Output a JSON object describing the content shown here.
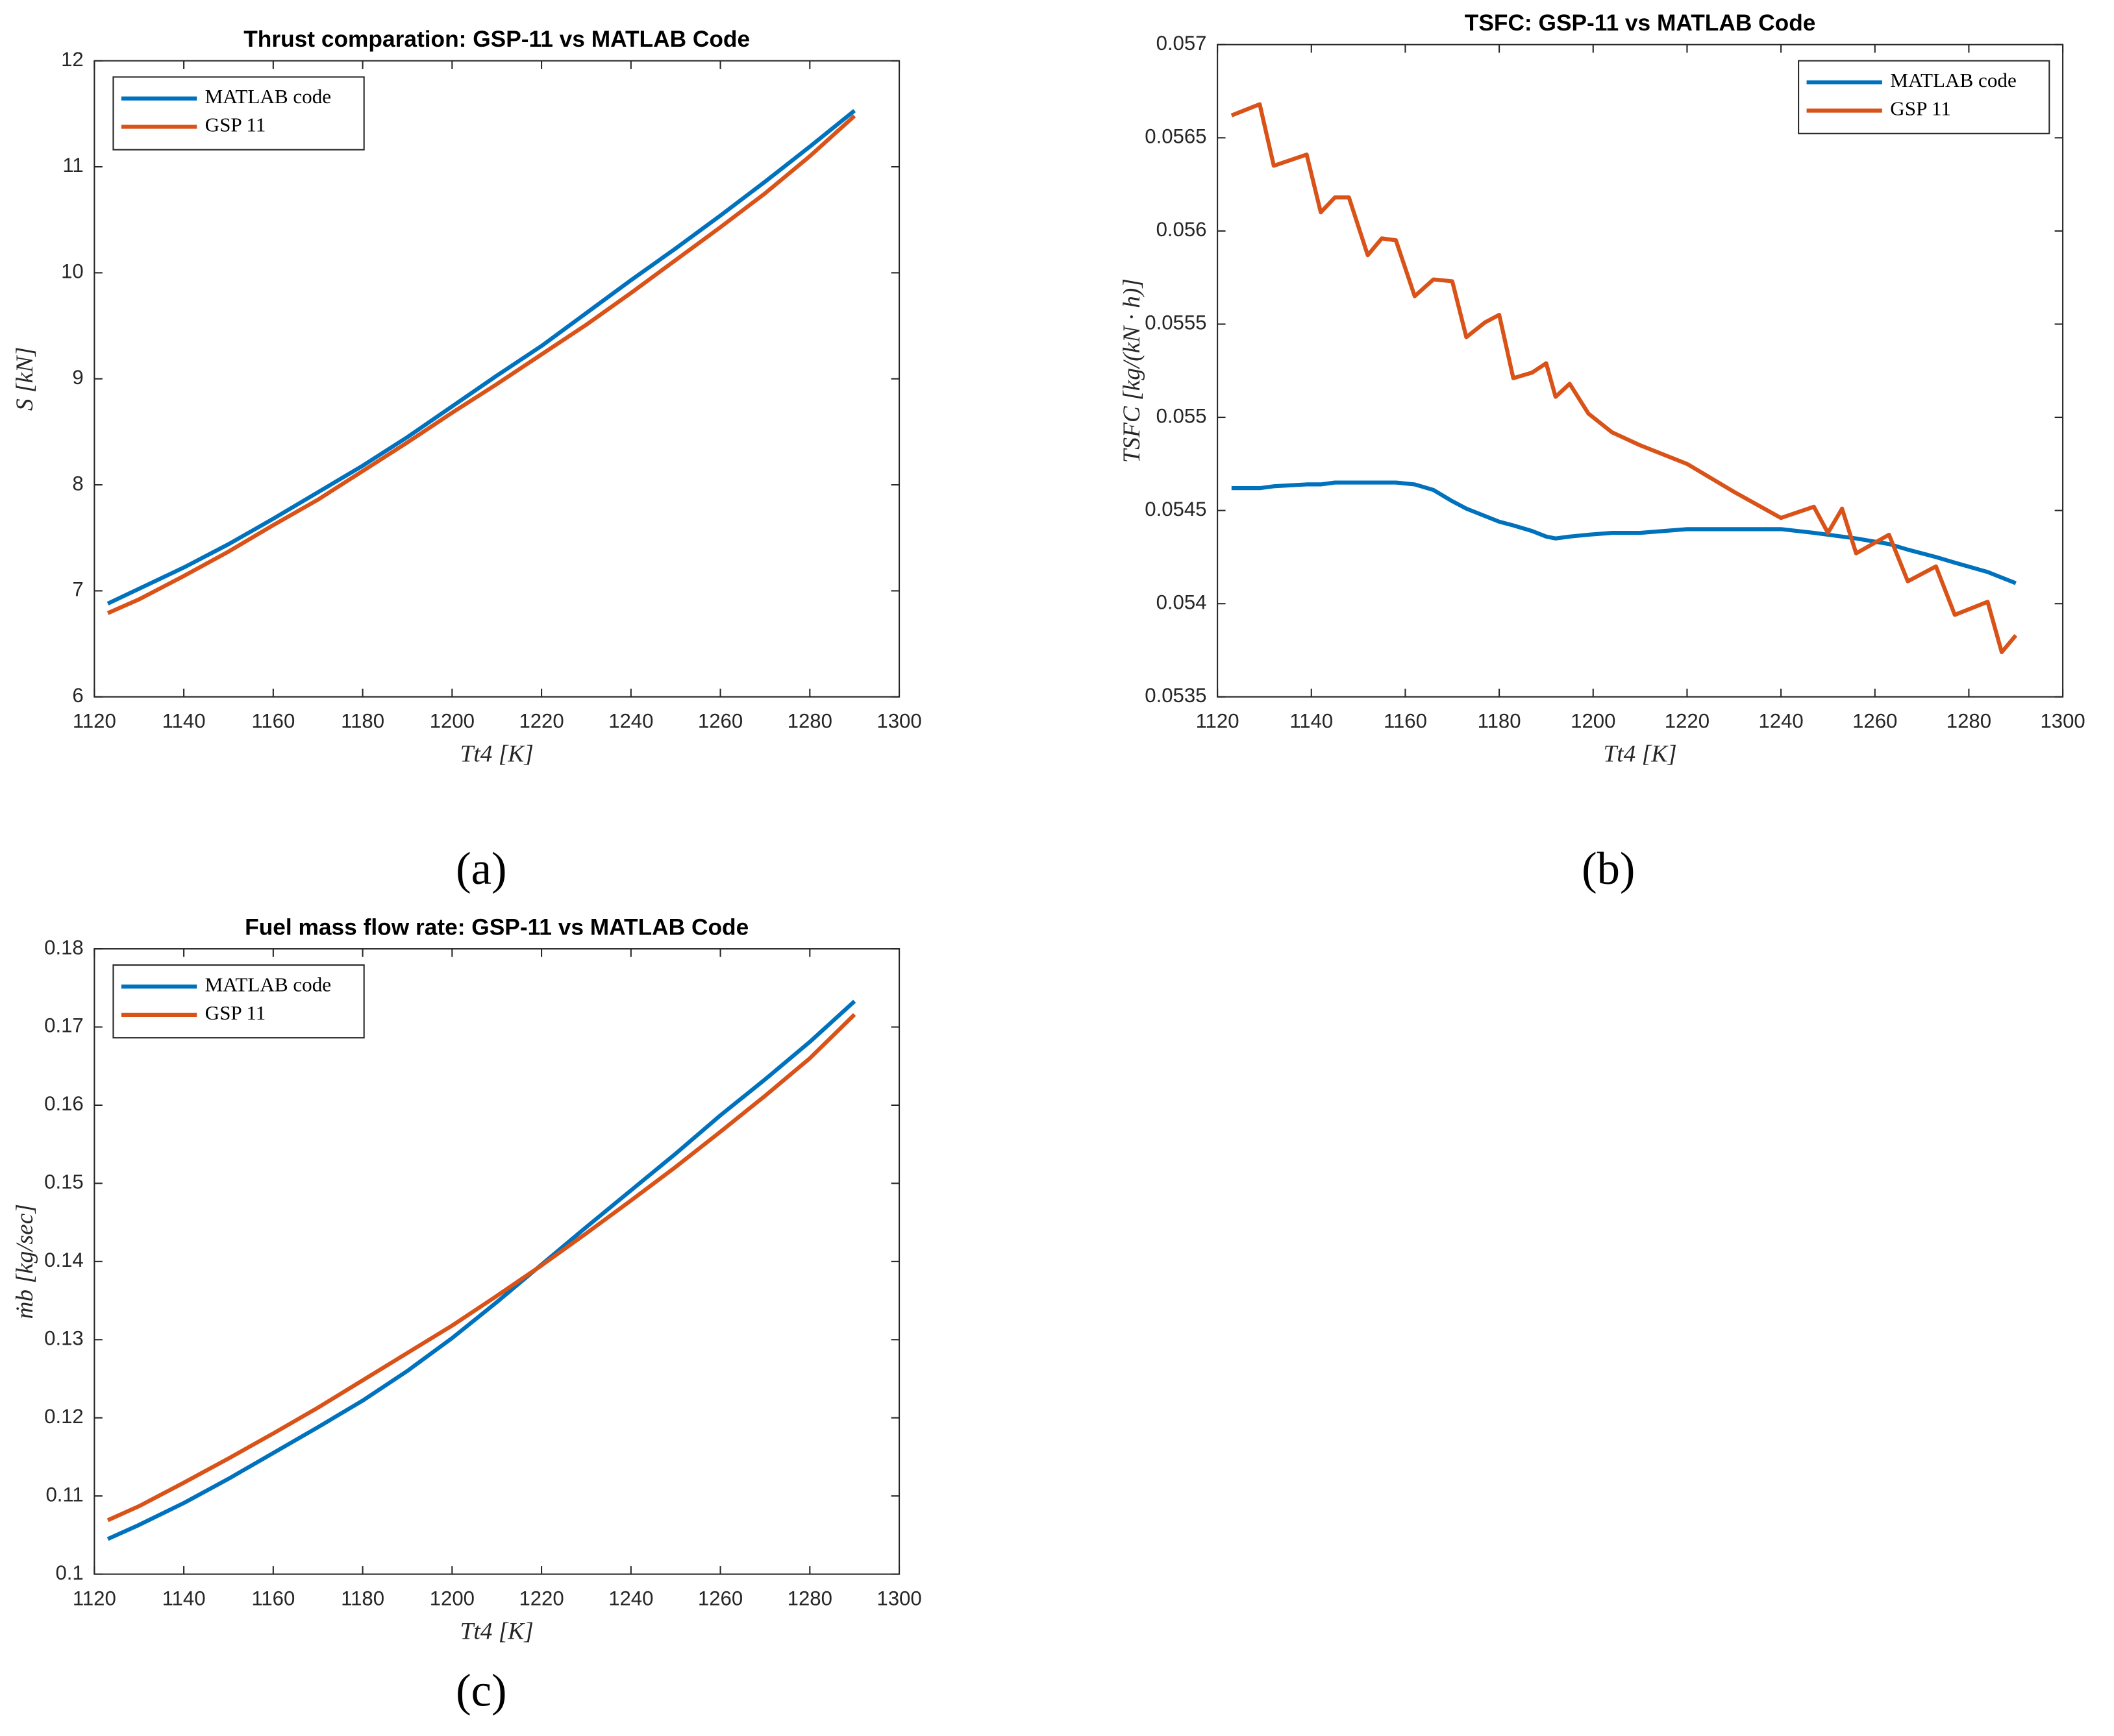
{
  "chart_data": [
    {
      "type": "line",
      "title": "Thrust comparation: GSP-11 vs MATLAB Code",
      "xlabel": "Tt4 [K]",
      "ylabel": "S [kN]",
      "caption": "(a)",
      "x": [
        1123,
        1130,
        1140,
        1150,
        1160,
        1170,
        1180,
        1190,
        1200,
        1210,
        1220,
        1230,
        1240,
        1250,
        1260,
        1270,
        1280,
        1290
      ],
      "series": [
        {
          "name": "MATLAB code",
          "color": "#0072BD",
          "values": [
            6.88,
            7.02,
            7.22,
            7.44,
            7.68,
            7.93,
            8.18,
            8.45,
            8.74,
            9.03,
            9.31,
            9.62,
            9.93,
            10.23,
            10.54,
            10.86,
            11.19,
            11.53
          ]
        },
        {
          "name": "GSP 11",
          "color": "#D95319",
          "values": [
            6.79,
            6.92,
            7.14,
            7.37,
            7.62,
            7.86,
            8.13,
            8.4,
            8.68,
            8.95,
            9.23,
            9.51,
            9.81,
            10.12,
            10.43,
            10.75,
            11.1,
            11.48
          ]
        }
      ],
      "xlim": [
        1120,
        1300
      ],
      "xticks": [
        1120,
        1140,
        1160,
        1180,
        1200,
        1220,
        1240,
        1260,
        1280,
        1300
      ],
      "ylim": [
        6,
        12
      ],
      "yticks": [
        6,
        7,
        8,
        9,
        10,
        11,
        12
      ],
      "grid": false,
      "legend": "top-left"
    },
    {
      "type": "line",
      "title": "TSFC: GSP-11 vs MATLAB Code",
      "xlabel": "Tt4 [K]",
      "ylabel": "TSFC [kg/(kN · h)]",
      "caption": "(b)",
      "x": [
        1123,
        1129,
        1132,
        1139,
        1142,
        1145,
        1148,
        1152,
        1155,
        1158,
        1162,
        1166,
        1170,
        1173,
        1177,
        1180,
        1183,
        1187,
        1190,
        1192,
        1195,
        1199,
        1204,
        1210,
        1220,
        1230,
        1240,
        1247,
        1250,
        1253,
        1256,
        1263,
        1267,
        1273,
        1277,
        1284,
        1287,
        1290
      ],
      "series": [
        {
          "name": "MATLAB code",
          "color": "#0072BD",
          "values": [
            0.05462,
            0.05462,
            0.05463,
            0.05464,
            0.05464,
            0.05465,
            0.05465,
            0.05465,
            0.05465,
            0.05465,
            0.05464,
            0.05461,
            0.05455,
            0.05451,
            0.05447,
            0.05444,
            0.05442,
            0.05439,
            0.05436,
            0.05435,
            0.05436,
            0.05437,
            0.05438,
            0.05438,
            0.0544,
            0.0544,
            0.0544,
            0.05438,
            0.05437,
            0.05436,
            0.05435,
            0.05432,
            0.05429,
            0.05425,
            0.05422,
            0.05417,
            0.05414,
            0.05411
          ]
        },
        {
          "name": "GSP 11",
          "color": "#D95319",
          "values": [
            0.05662,
            0.05668,
            0.05635,
            0.05641,
            0.0561,
            0.05618,
            0.05618,
            0.05587,
            0.05596,
            0.05595,
            0.05565,
            0.05574,
            0.05573,
            0.05543,
            0.05551,
            0.05555,
            0.05521,
            0.05524,
            0.05529,
            0.05511,
            0.05518,
            0.05502,
            0.05492,
            0.05485,
            0.05475,
            0.0546,
            0.05446,
            0.05452,
            0.05438,
            0.05451,
            0.05427,
            0.05437,
            0.05412,
            0.0542,
            0.05394,
            0.05401,
            0.05374,
            0.05383
          ]
        }
      ],
      "xlim": [
        1120,
        1300
      ],
      "xticks": [
        1120,
        1140,
        1160,
        1180,
        1200,
        1220,
        1240,
        1260,
        1280,
        1300
      ],
      "ylim": [
        0.0535,
        0.057
      ],
      "yticks": [
        0.0535,
        0.054,
        0.0545,
        0.055,
        0.0555,
        0.056,
        0.0565,
        0.057
      ],
      "grid": false,
      "legend": "top-right"
    },
    {
      "type": "line",
      "title": "Fuel mass flow rate: GSP-11 vs MATLAB Code",
      "xlabel": "Tt4 [K]",
      "ylabel": "ṁb [kg/sec]",
      "caption": "(c)",
      "x": [
        1123,
        1130,
        1140,
        1150,
        1160,
        1170,
        1180,
        1190,
        1200,
        1210,
        1220,
        1230,
        1240,
        1250,
        1260,
        1270,
        1280,
        1290
      ],
      "series": [
        {
          "name": "MATLAB code",
          "color": "#0072BD",
          "values": [
            0.1045,
            0.1063,
            0.1091,
            0.1122,
            0.1155,
            0.1188,
            0.1222,
            0.126,
            0.1302,
            0.1348,
            0.1396,
            0.1444,
            0.1491,
            0.1538,
            0.1587,
            0.1633,
            0.1681,
            0.1733
          ]
        },
        {
          "name": "GSP 11",
          "color": "#D95319",
          "values": [
            0.1069,
            0.1087,
            0.1117,
            0.1148,
            0.118,
            0.1213,
            0.1248,
            0.1283,
            0.1318,
            0.1356,
            0.1395,
            0.1436,
            0.1478,
            0.1521,
            0.1566,
            0.1612,
            0.166,
            0.1716
          ]
        }
      ],
      "xlim": [
        1120,
        1300
      ],
      "xticks": [
        1120,
        1140,
        1160,
        1180,
        1200,
        1220,
        1240,
        1260,
        1280,
        1300
      ],
      "ylim": [
        0.1,
        0.18
      ],
      "yticks": [
        0.1,
        0.11,
        0.12,
        0.13,
        0.14,
        0.15,
        0.16,
        0.17,
        0.18
      ],
      "grid": false,
      "legend": "top-left"
    }
  ]
}
